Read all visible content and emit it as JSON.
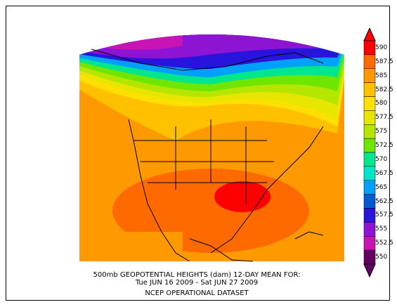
{
  "map": {
    "caption_line1": "500mb GEOPOTENTIAL HEIGHTS (dam)    12-DAY MEAN FOR:",
    "caption_line2": "Tue JUN 16 2009 - Sat JUN 27 2009",
    "caption_line3": "NCEP OPERATIONAL DATASET",
    "colorbar": {
      "labels": [
        "590",
        "587.5",
        "585",
        "582.5",
        "580",
        "577.5",
        "575",
        "572.5",
        "570",
        "567.5",
        "565",
        "562.5",
        "557.5",
        "555",
        "552.5",
        "550"
      ],
      "colors": [
        "#ff0000",
        "#ff6a00",
        "#ff9900",
        "#ffc000",
        "#ffe000",
        "#e6e600",
        "#b4e600",
        "#6ee600",
        "#00e68c",
        "#00e6c8",
        "#00a0ff",
        "#005ad2",
        "#2814dc",
        "#8c14d2",
        "#c814b4",
        "#640064"
      ]
    }
  }
}
